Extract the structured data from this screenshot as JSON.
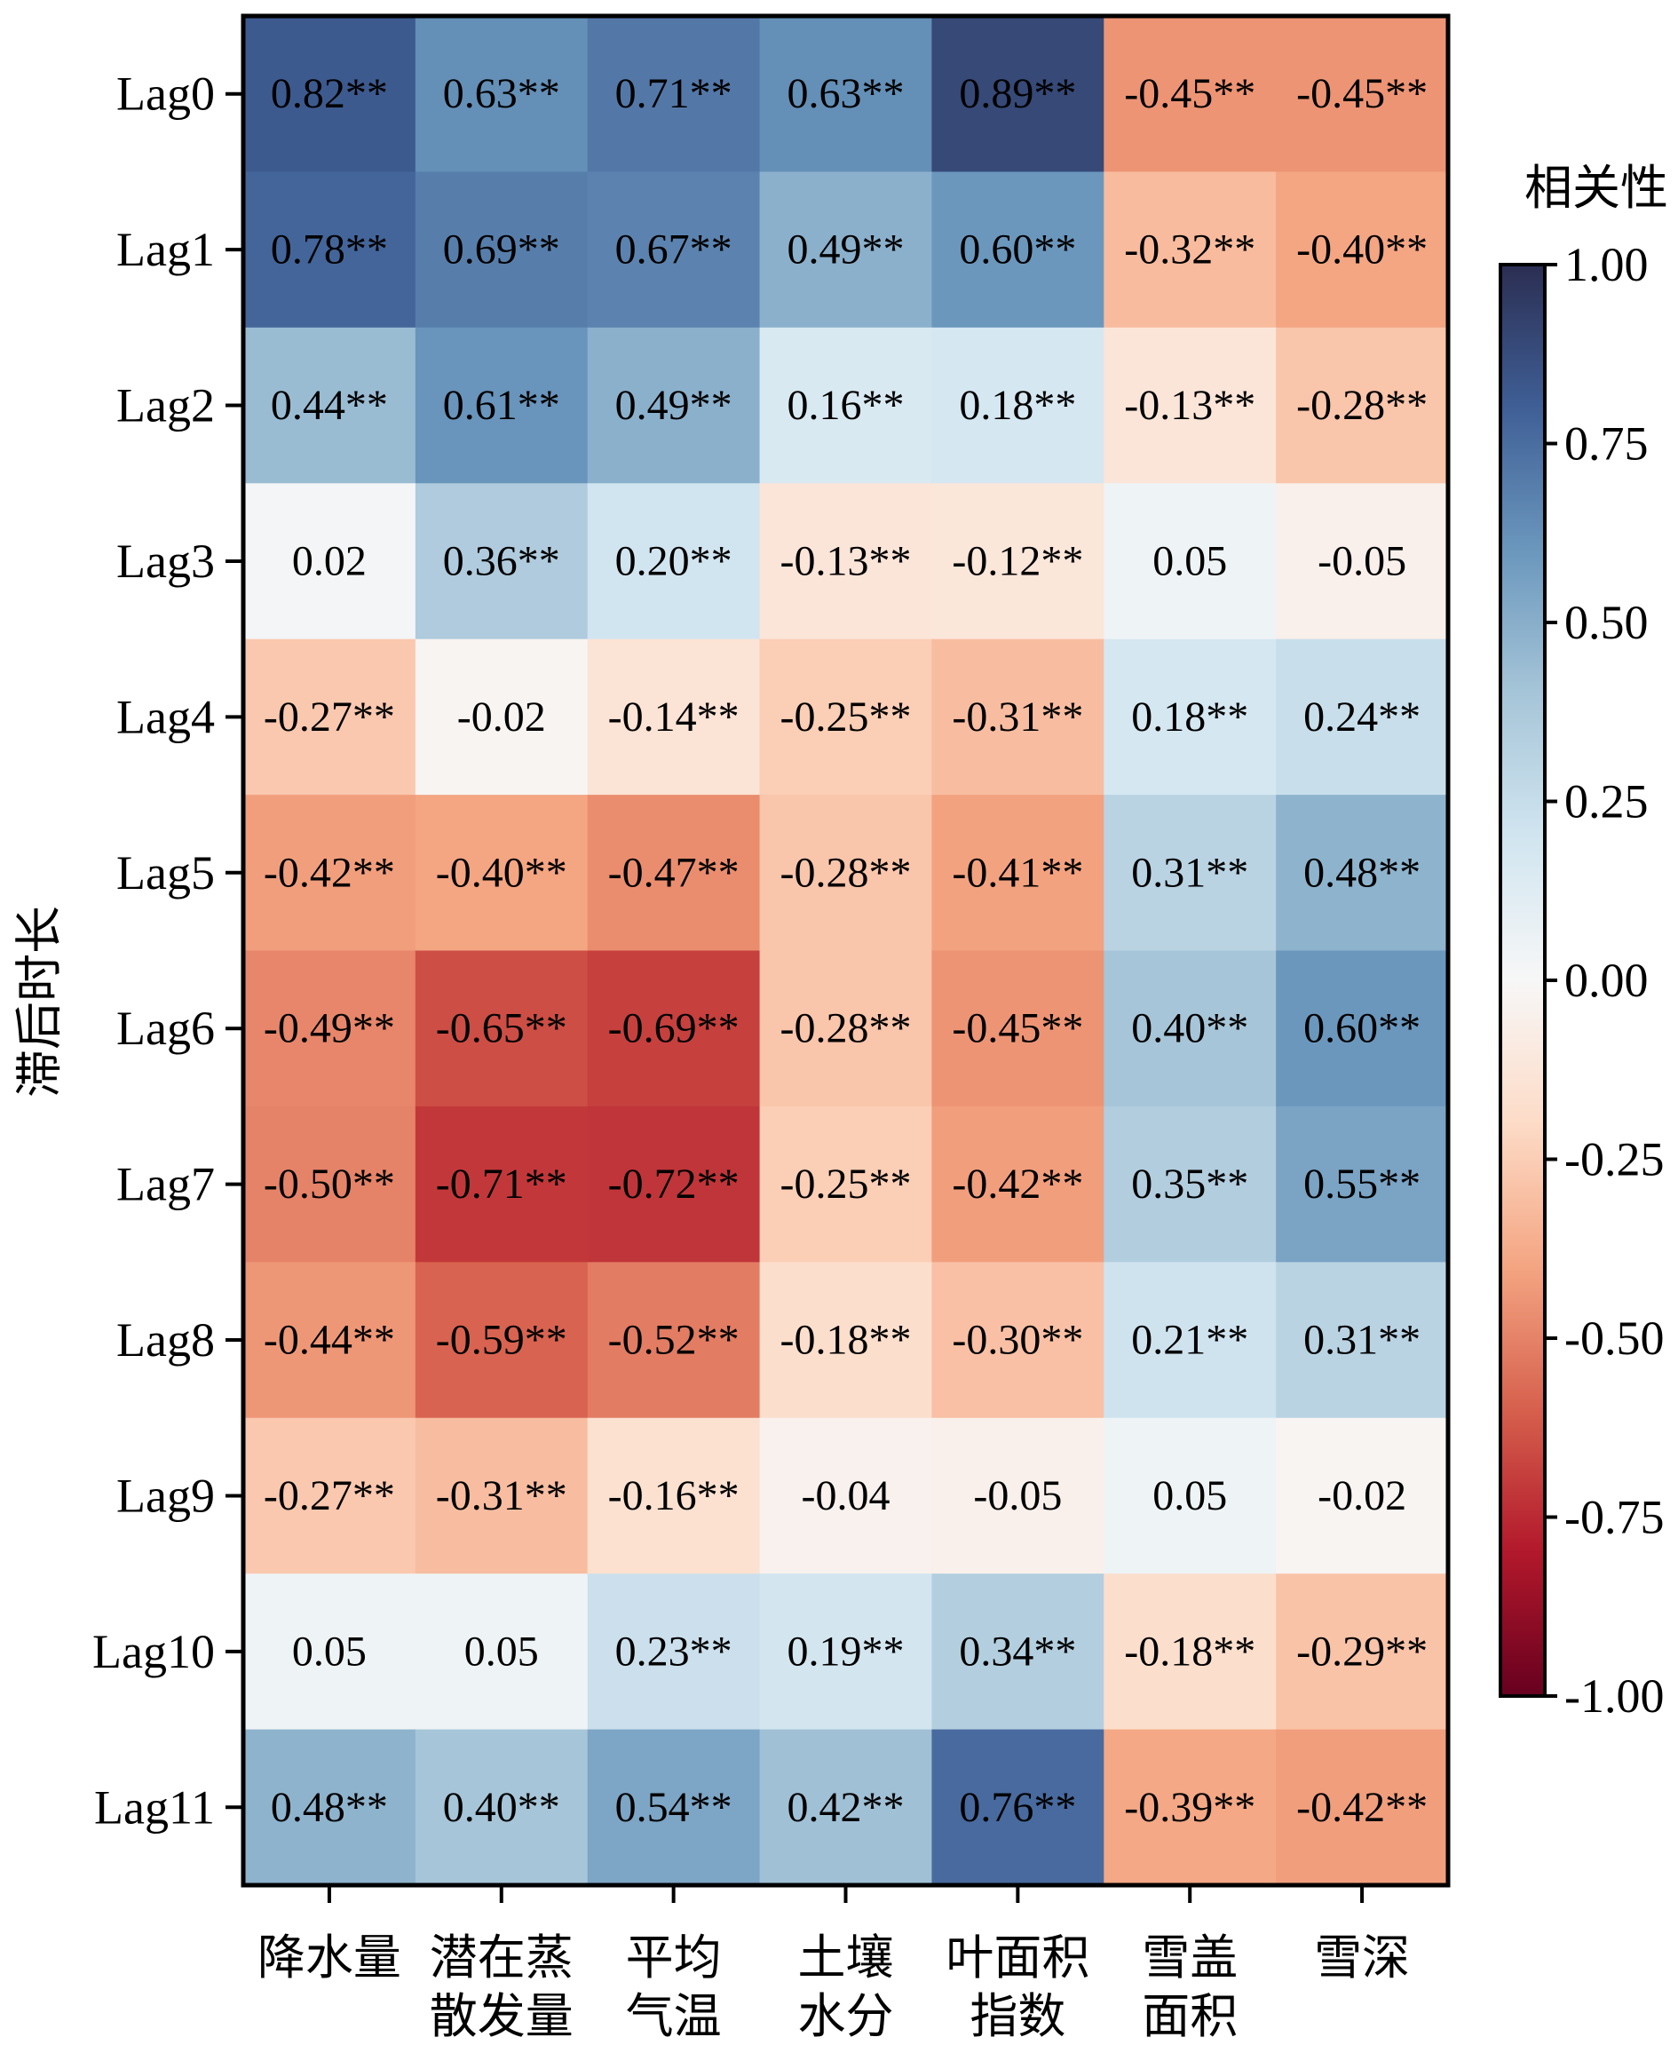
{
  "chart_data": {
    "type": "heatmap",
    "title": "",
    "ylabel": "滞后时长",
    "xlabel": "",
    "rows": [
      "Lag0",
      "Lag1",
      "Lag2",
      "Lag3",
      "Lag4",
      "Lag5",
      "Lag6",
      "Lag7",
      "Lag8",
      "Lag9",
      "Lag10",
      "Lag11"
    ],
    "columns": [
      [
        "降水量"
      ],
      [
        "潜在蒸",
        "散发量"
      ],
      [
        "平均",
        "气温"
      ],
      [
        "土壤",
        "水分"
      ],
      [
        "叶面积",
        "指数"
      ],
      [
        "雪盖",
        "面积"
      ],
      [
        "雪深"
      ]
    ],
    "values": [
      [
        0.82,
        0.63,
        0.71,
        0.63,
        0.89,
        -0.45,
        -0.45
      ],
      [
        0.78,
        0.69,
        0.67,
        0.49,
        0.6,
        -0.32,
        -0.4
      ],
      [
        0.44,
        0.61,
        0.49,
        0.16,
        0.18,
        -0.13,
        -0.28
      ],
      [
        0.02,
        0.36,
        0.2,
        -0.13,
        -0.12,
        0.05,
        -0.05
      ],
      [
        -0.27,
        -0.02,
        -0.14,
        -0.25,
        -0.31,
        0.18,
        0.24
      ],
      [
        -0.42,
        -0.4,
        -0.47,
        -0.28,
        -0.41,
        0.31,
        0.48
      ],
      [
        -0.49,
        -0.65,
        -0.69,
        -0.28,
        -0.45,
        0.4,
        0.6
      ],
      [
        -0.5,
        -0.71,
        -0.72,
        -0.25,
        -0.42,
        0.35,
        0.55
      ],
      [
        -0.44,
        -0.59,
        -0.52,
        -0.18,
        -0.3,
        0.21,
        0.31
      ],
      [
        -0.27,
        -0.31,
        -0.16,
        -0.04,
        -0.05,
        0.05,
        -0.02
      ],
      [
        0.05,
        0.05,
        0.23,
        0.19,
        0.34,
        -0.18,
        -0.29
      ],
      [
        0.48,
        0.4,
        0.54,
        0.42,
        0.76,
        -0.39,
        -0.42
      ]
    ],
    "labels": [
      [
        "0.82**",
        "0.63**",
        "0.71**",
        "0.63**",
        "0.89**",
        "-0.45**",
        "-0.45**"
      ],
      [
        "0.78**",
        "0.69**",
        "0.67**",
        "0.49**",
        "0.60**",
        "-0.32**",
        "-0.40**"
      ],
      [
        "0.44**",
        "0.61**",
        "0.49**",
        "0.16**",
        "0.18**",
        "-0.13**",
        "-0.28**"
      ],
      [
        "0.02",
        "0.36**",
        "0.20**",
        "-0.13**",
        "-0.12**",
        "0.05",
        "-0.05"
      ],
      [
        "-0.27**",
        "-0.02",
        "-0.14**",
        "-0.25**",
        "-0.31**",
        "0.18**",
        "0.24**"
      ],
      [
        "-0.42**",
        "-0.40**",
        "-0.47**",
        "-0.28**",
        "-0.41**",
        "0.31**",
        "0.48**"
      ],
      [
        "-0.49**",
        "-0.65**",
        "-0.69**",
        "-0.28**",
        "-0.45**",
        "0.40**",
        "0.60**"
      ],
      [
        "-0.50**",
        "-0.71**",
        "-0.72**",
        "-0.25**",
        "-0.42**",
        "0.35**",
        "0.55**"
      ],
      [
        "-0.44**",
        "-0.59**",
        "-0.52**",
        "-0.18**",
        "-0.30**",
        "0.21**",
        "0.31**"
      ],
      [
        "-0.27**",
        "-0.31**",
        "-0.16**",
        "-0.04",
        "-0.05",
        "0.05",
        "-0.02"
      ],
      [
        "0.05",
        "0.05",
        "0.23**",
        "0.19**",
        "0.34**",
        "-0.18**",
        "-0.29**"
      ],
      [
        "0.48**",
        "0.40**",
        "0.54**",
        "0.42**",
        "0.76**",
        "-0.39**",
        "-0.42**"
      ]
    ],
    "colorbar": {
      "title": "相关性",
      "range": [
        -1.0,
        1.0
      ],
      "ticks": [
        1.0,
        0.75,
        0.5,
        0.25,
        0.0,
        -0.25,
        -0.5,
        -0.75,
        -1.0
      ],
      "tick_labels": [
        "1.00",
        "0.75",
        "0.50",
        "0.25",
        "0.00",
        "-0.25",
        "-0.50",
        "-0.75",
        "-1.00"
      ],
      "colormap": "RdBu",
      "stops": [
        {
          "v": -1.0,
          "c": "#67001f"
        },
        {
          "v": -0.8,
          "c": "#b2182b"
        },
        {
          "v": -0.6,
          "c": "#d6604d"
        },
        {
          "v": -0.4,
          "c": "#f4a582"
        },
        {
          "v": -0.2,
          "c": "#fddbc7"
        },
        {
          "v": 0.0,
          "c": "#f7f7f7"
        },
        {
          "v": 0.2,
          "c": "#d1e5f0"
        },
        {
          "v": 0.4,
          "c": "#a6c5d8"
        },
        {
          "v": 0.6,
          "c": "#6b97bd"
        },
        {
          "v": 0.8,
          "c": "#3f5f96"
        },
        {
          "v": 1.0,
          "c": "#2b2e52"
        }
      ]
    }
  }
}
